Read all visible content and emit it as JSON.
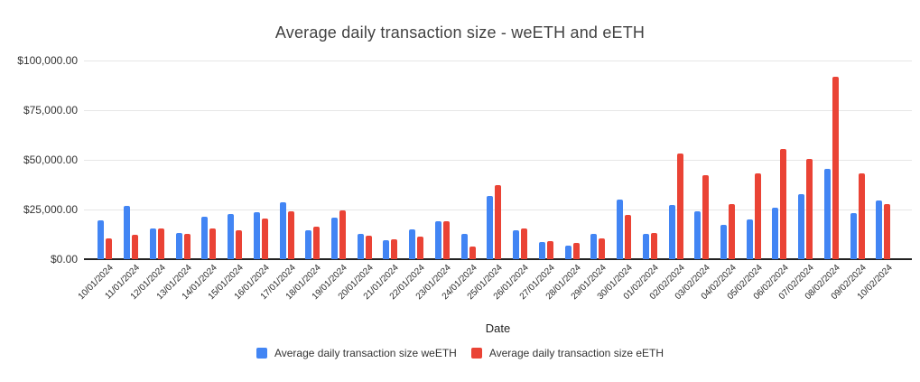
{
  "chart_data": {
    "type": "bar",
    "title": "Average daily transaction size - weETH and eETH",
    "xlabel": "Date",
    "ylabel": "",
    "ylim": [
      0,
      100000
    ],
    "grid": true,
    "legend_position": "bottom",
    "y_ticks": [
      {
        "value": 0,
        "label": "$0.00"
      },
      {
        "value": 25000,
        "label": "$25,000.00"
      },
      {
        "value": 50000,
        "label": "$50,000.00"
      },
      {
        "value": 75000,
        "label": "$75,000.00"
      },
      {
        "value": 100000,
        "label": "$100,000.00"
      }
    ],
    "categories": [
      "10/01/2024",
      "11/01/2024",
      "12/01/2024",
      "13/01/2024",
      "14/01/2024",
      "15/01/2024",
      "16/01/2024",
      "17/01/2024",
      "18/01/2024",
      "19/01/2024",
      "20/01/2024",
      "21/01/2024",
      "22/01/2024",
      "23/01/2024",
      "24/01/2024",
      "25/01/2024",
      "26/01/2024",
      "27/01/2024",
      "28/01/2024",
      "29/01/2024",
      "30/01/2024",
      "01/02/2024",
      "02/02/2024",
      "03/02/2024",
      "04/02/2024",
      "05/02/2024",
      "06/02/2024",
      "07/02/2024",
      "08/02/2024",
      "09/02/2024",
      "10/02/2024"
    ],
    "series": [
      {
        "name": "Average daily transaction size weETH",
        "color": "#4285F4",
        "values": [
          19500,
          26800,
          15700,
          13400,
          21400,
          22600,
          23700,
          28500,
          14700,
          21000,
          12800,
          9400,
          15200,
          18900,
          12900,
          31800,
          14700,
          8700,
          6900,
          12700,
          30000,
          12800,
          27200,
          24200,
          17200,
          20000,
          25800,
          32900,
          45700,
          23200,
          29500
        ]
      },
      {
        "name": "Average daily transaction size eETH",
        "color": "#EA4335",
        "values": [
          10700,
          12400,
          15300,
          12900,
          15700,
          14700,
          20700,
          23900,
          16200,
          24400,
          11800,
          9900,
          11400,
          19200,
          6500,
          37100,
          15600,
          9100,
          8000,
          10300,
          22400,
          13400,
          53000,
          42400,
          27600,
          43200,
          55600,
          50700,
          91700,
          43200,
          27700
        ]
      }
    ],
    "colors": {
      "gridline": "#e6e6e6",
      "baseline": "#212121",
      "title_text": "#424242",
      "axis_text": "#333333"
    }
  }
}
